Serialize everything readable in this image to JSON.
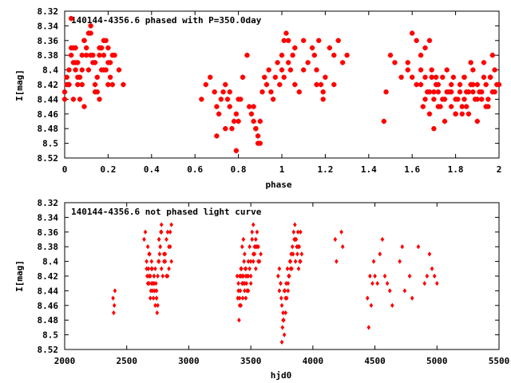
{
  "chart_data": [
    {
      "type": "scatter",
      "title": "140144-4356.6 phased with P=350.0day",
      "xlabel": "phase",
      "ylabel": "I[mag]",
      "xlim": [
        0,
        2
      ],
      "ylim": [
        8.52,
        8.32
      ],
      "y_inverted": true,
      "grid": false,
      "marker": "star",
      "color": "#ff0000",
      "xticks": [
        "0",
        "0.2",
        "0.4",
        "0.6",
        "0.8",
        "1",
        "1.2",
        "1.4",
        "1.6",
        "1.8",
        "2"
      ],
      "yticks": [
        "8.32",
        "8.34",
        "8.36",
        "8.38",
        "8.4",
        "8.42",
        "8.44",
        "8.46",
        "8.48",
        "8.5",
        "8.52"
      ],
      "series": [
        {
          "x": [
            0.0,
            0.01,
            0.02,
            0.03,
            0.04,
            0.05,
            0.06,
            0.07,
            0.08,
            0.09,
            0.1,
            0.11,
            0.12,
            0.13,
            0.14,
            0.15,
            0.16,
            0.17,
            0.18,
            0.19,
            0.2,
            0.21,
            0.22,
            0.23,
            0.25,
            0.27,
            0.0,
            0.02,
            0.04,
            0.05,
            0.07,
            0.09,
            0.11,
            0.13,
            0.15,
            0.17,
            0.19,
            0.21,
            0.01,
            0.03,
            0.06,
            0.08,
            0.1,
            0.12,
            0.14,
            0.16,
            0.18,
            0.2,
            0.22,
            0.04,
            0.09,
            0.14,
            0.18,
            0.12,
            0.06,
            0.08,
            0.16,
            0.2,
            0.02,
            0.05,
            0.03,
            0.63,
            0.65,
            0.67,
            0.69,
            0.7,
            0.71,
            0.72,
            0.73,
            0.74,
            0.75,
            0.76,
            0.77,
            0.78,
            0.79,
            0.8,
            0.81,
            0.82,
            0.84,
            0.85,
            0.86,
            0.87,
            0.88,
            0.89,
            0.9,
            0.91,
            0.92,
            0.93,
            0.94,
            0.95,
            0.96,
            0.97,
            0.98,
            0.99,
            1.0,
            0.7,
            0.74,
            0.76,
            0.79,
            0.8,
            0.87,
            0.88,
            0.89,
            0.9,
            1.0,
            1.01,
            1.02,
            1.03,
            1.04,
            1.05,
            1.06,
            1.08,
            1.1,
            1.12,
            1.14,
            1.15,
            1.16,
            1.17,
            1.18,
            1.19,
            1.2,
            1.22,
            1.24,
            1.26,
            1.28,
            1.3,
            1.01,
            1.03,
            1.06,
            1.1,
            1.16,
            1.19,
            1.24,
            1.47,
            1.48,
            1.5,
            1.52,
            1.55,
            1.58,
            1.6,
            1.62,
            1.64,
            1.66,
            1.68,
            1.58,
            1.6,
            1.62,
            1.64,
            1.64,
            1.66,
            1.68,
            1.7,
            1.72,
            1.74,
            1.76,
            1.78,
            1.8,
            1.82,
            1.84,
            1.86,
            1.88,
            1.9,
            1.92,
            1.94,
            1.96,
            1.98,
            2.0,
            1.65,
            1.67,
            1.69,
            1.71,
            1.73,
            1.75,
            1.77,
            1.79,
            1.81,
            1.83,
            1.85,
            1.87,
            1.89,
            1.91,
            1.93,
            1.95,
            1.97,
            1.99,
            1.66,
            1.68,
            1.7,
            1.72,
            1.74,
            1.76,
            1.78,
            1.8,
            1.82,
            1.84,
            1.86,
            1.88,
            1.9,
            1.92,
            1.94,
            1.96,
            1.98,
            1.7,
            1.75,
            1.8,
            1.85,
            1.9,
            1.95,
            1.72,
            1.78,
            1.84,
            1.88,
            1.93,
            1.97,
            1.69,
            1.71,
            1.83,
            1.87
          ],
          "y": [
            8.43,
            8.41,
            8.42,
            8.38,
            8.37,
            8.4,
            8.39,
            8.41,
            8.38,
            8.36,
            8.37,
            8.4,
            8.38,
            8.39,
            8.42,
            8.41,
            8.37,
            8.4,
            8.38,
            8.36,
            8.39,
            8.41,
            8.42,
            8.38,
            8.4,
            8.42,
            8.44,
            8.42,
            8.39,
            8.37,
            8.44,
            8.36,
            8.35,
            8.38,
            8.43,
            8.37,
            8.4,
            8.39,
            8.42,
            8.33,
            8.42,
            8.4,
            8.38,
            8.34,
            8.39,
            8.44,
            8.4,
            8.37,
            8.38,
            8.44,
            8.45,
            8.43,
            8.36,
            8.35,
            8.41,
            8.42,
            8.38,
            8.42,
            8.4,
            8.39,
            8.37,
            8.44,
            8.42,
            8.41,
            8.43,
            8.45,
            8.46,
            8.44,
            8.43,
            8.42,
            8.44,
            8.45,
            8.48,
            8.47,
            8.46,
            8.47,
            8.44,
            8.41,
            8.38,
            8.45,
            8.46,
            8.45,
            8.48,
            8.5,
            8.47,
            8.43,
            8.41,
            8.42,
            8.4,
            8.43,
            8.44,
            8.41,
            8.39,
            8.42,
            8.4,
            8.49,
            8.48,
            8.43,
            8.51,
            8.44,
            8.47,
            8.48,
            8.49,
            8.5,
            8.38,
            8.36,
            8.35,
            8.39,
            8.4,
            8.38,
            8.42,
            8.43,
            8.36,
            8.39,
            8.37,
            8.38,
            8.4,
            8.36,
            8.42,
            8.43,
            8.41,
            8.37,
            8.38,
            8.36,
            8.39,
            8.38,
            8.41,
            8.36,
            8.37,
            8.4,
            8.42,
            8.44,
            8.42,
            8.47,
            8.43,
            8.38,
            8.39,
            8.41,
            8.4,
            8.35,
            8.36,
            8.38,
            8.37,
            8.36,
            8.39,
            8.41,
            8.42,
            8.4,
            8.42,
            8.41,
            8.43,
            8.44,
            8.42,
            8.41,
            8.4,
            8.43,
            8.44,
            8.42,
            8.41,
            8.43,
            8.42,
            8.44,
            8.43,
            8.42,
            8.41,
            8.4,
            8.42,
            8.45,
            8.43,
            8.41,
            8.42,
            8.45,
            8.44,
            8.43,
            8.41,
            8.44,
            8.45,
            8.43,
            8.42,
            8.44,
            8.43,
            8.41,
            8.45,
            8.43,
            8.42,
            8.44,
            8.46,
            8.43,
            8.45,
            8.44,
            8.43,
            8.45,
            8.46,
            8.43,
            8.44,
            8.46,
            8.43,
            8.42,
            8.44,
            8.45,
            8.41,
            8.43,
            8.48,
            8.47,
            8.46,
            8.45,
            8.47,
            8.44,
            8.43,
            8.42,
            8.41,
            8.4,
            8.39,
            8.38,
            8.4,
            8.41,
            8.46,
            8.39
          ]
        }
      ]
    },
    {
      "type": "scatter",
      "title": "140144-4356.6 not phased light curve",
      "xlabel": "hjd0",
      "ylabel": "I[mag]",
      "xlim": [
        2000,
        5500
      ],
      "ylim": [
        8.52,
        8.32
      ],
      "y_inverted": true,
      "grid": false,
      "marker": "diamond",
      "color": "#ff0000",
      "xticks": [
        "2000",
        "2500",
        "3000",
        "3500",
        "4000",
        "4500",
        "5000",
        "5500"
      ],
      "yticks": [
        "8.32",
        "8.34",
        "8.36",
        "8.38",
        "8.4",
        "8.42",
        "8.44",
        "8.46",
        "8.48",
        "8.5",
        "8.52"
      ],
      "series": [
        {
          "x": [
            2390,
            2395,
            2400,
            2405,
            2640,
            2650,
            2660,
            2665,
            2670,
            2675,
            2680,
            2685,
            2690,
            2695,
            2700,
            2705,
            2710,
            2715,
            2720,
            2725,
            2730,
            2735,
            2740,
            2745,
            2750,
            2755,
            2760,
            2765,
            2770,
            2775,
            2780,
            2790,
            2800,
            2810,
            2820,
            2830,
            2840,
            2850,
            2860,
            2660,
            2670,
            2680,
            2690,
            2700,
            2710,
            2720,
            2730,
            2740,
            2750,
            2760,
            2770,
            2780,
            2800,
            2820,
            2840,
            2860,
            2680,
            2700,
            2720,
            2740,
            2760,
            2780,
            2810,
            2830,
            2850,
            3390,
            3395,
            3400,
            3405,
            3410,
            3415,
            3420,
            3425,
            3430,
            3435,
            3440,
            3445,
            3450,
            3455,
            3460,
            3465,
            3470,
            3480,
            3490,
            3500,
            3510,
            3520,
            3530,
            3540,
            3550,
            3560,
            3570,
            3580,
            3400,
            3410,
            3420,
            3430,
            3440,
            3450,
            3460,
            3470,
            3480,
            3490,
            3500,
            3510,
            3520,
            3530,
            3540,
            3550,
            3560,
            3420,
            3440,
            3460,
            3480,
            3500,
            3520,
            3540,
            3410,
            3430,
            3450,
            3720,
            3730,
            3740,
            3750,
            3760,
            3770,
            3780,
            3790,
            3800,
            3810,
            3820,
            3830,
            3840,
            3850,
            3860,
            3870,
            3880,
            3890,
            3900,
            3910,
            3730,
            3745,
            3755,
            3765,
            3775,
            3785,
            3795,
            3805,
            3815,
            3825,
            3835,
            3845,
            3855,
            3865,
            3875,
            3885,
            3895,
            3740,
            3760,
            3780,
            3800,
            3820,
            3840,
            3860,
            3880,
            3900,
            3750,
            3770,
            4180,
            4190,
            4230,
            4240,
            4440,
            4450,
            4460,
            4470,
            4480,
            4490,
            4500,
            4520,
            4540,
            4560,
            4580,
            4600,
            4620,
            4640,
            4700,
            4720,
            4740,
            4780,
            4800,
            4850,
            4900,
            4920,
            4940,
            4960,
            4980,
            5000
          ],
          "y": [
            8.45,
            8.47,
            8.46,
            8.44,
            8.37,
            8.36,
            8.4,
            8.42,
            8.38,
            8.41,
            8.43,
            8.39,
            8.42,
            8.44,
            8.4,
            8.41,
            8.43,
            8.45,
            8.42,
            8.44,
            8.46,
            8.43,
            8.45,
            8.47,
            8.42,
            8.4,
            8.37,
            8.39,
            8.38,
            8.36,
            8.41,
            8.42,
            8.39,
            8.4,
            8.37,
            8.36,
            8.41,
            8.38,
            8.35,
            8.41,
            8.43,
            8.42,
            8.45,
            8.43,
            8.44,
            8.42,
            8.41,
            8.44,
            8.46,
            8.4,
            8.38,
            8.36,
            8.4,
            8.42,
            8.38,
            8.4,
            8.39,
            8.41,
            8.43,
            8.45,
            8.37,
            8.35,
            8.39,
            8.42,
            8.36,
            8.42,
            8.45,
            8.43,
            8.48,
            8.46,
            8.44,
            8.42,
            8.41,
            8.43,
            8.45,
            8.42,
            8.4,
            8.39,
            8.41,
            8.42,
            8.43,
            8.44,
            8.42,
            8.41,
            8.4,
            8.37,
            8.39,
            8.38,
            8.41,
            8.36,
            8.38,
            8.4,
            8.39,
            8.44,
            8.42,
            8.41,
            8.38,
            8.37,
            8.43,
            8.45,
            8.42,
            8.4,
            8.38,
            8.43,
            8.36,
            8.35,
            8.39,
            8.37,
            8.38,
            8.4,
            8.46,
            8.43,
            8.41,
            8.44,
            8.42,
            8.4,
            8.38,
            8.45,
            8.42,
            8.44,
            8.42,
            8.44,
            8.43,
            8.46,
            8.48,
            8.5,
            8.47,
            8.45,
            8.44,
            8.42,
            8.4,
            8.41,
            8.39,
            8.37,
            8.4,
            8.38,
            8.36,
            8.38,
            8.4,
            8.39,
            8.41,
            8.45,
            8.49,
            8.48,
            8.44,
            8.43,
            8.41,
            8.42,
            8.4,
            8.39,
            8.38,
            8.36,
            8.35,
            8.37,
            8.39,
            8.41,
            8.4,
            8.43,
            8.47,
            8.45,
            8.43,
            8.41,
            8.39,
            8.37,
            8.38,
            8.36,
            8.51,
            8.44,
            8.37,
            8.4,
            8.36,
            8.38,
            8.45,
            8.49,
            8.42,
            8.46,
            8.43,
            8.4,
            8.42,
            8.43,
            8.39,
            8.37,
            8.42,
            8.43,
            8.44,
            8.46,
            8.4,
            8.38,
            8.44,
            8.42,
            8.45,
            8.38,
            8.43,
            8.42,
            8.39,
            8.41,
            8.42,
            8.43
          ]
        }
      ]
    }
  ]
}
